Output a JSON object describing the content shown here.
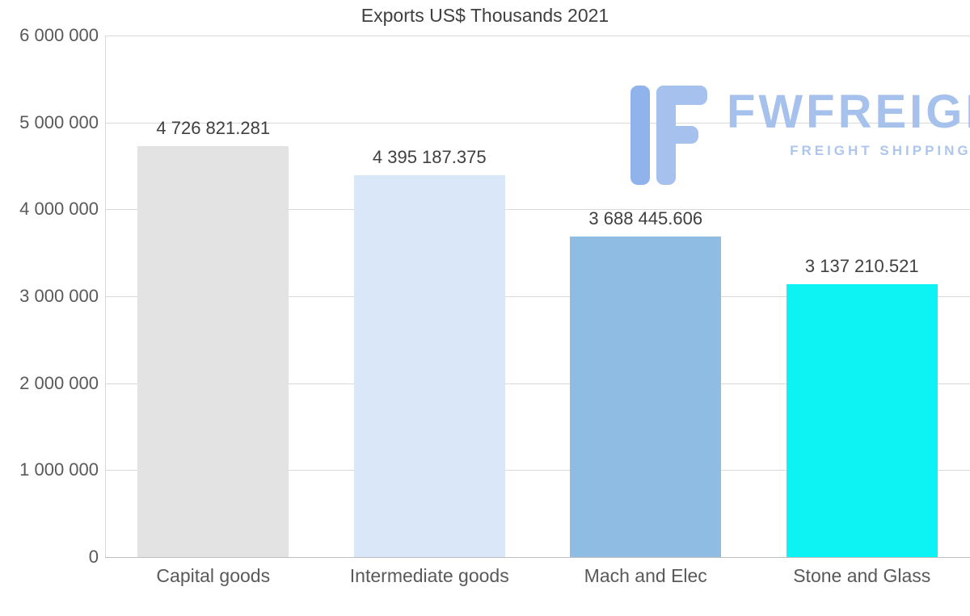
{
  "chart_data": {
    "type": "bar",
    "title": "Exports US$ Thousands 2021",
    "categories": [
      "Capital goods",
      "Intermediate goods",
      "Mach and Elec",
      "Stone and Glass"
    ],
    "values": [
      4726821.281,
      4395187.375,
      3688445.606,
      3137210.521
    ],
    "value_labels": [
      "4 726 821.281",
      "4 395 187.375",
      "3 688 445.606",
      "3 137 210.521"
    ],
    "bar_colors": [
      "#e3e3e3",
      "#d9e7f8",
      "#8fbce2",
      "#0df2f2"
    ],
    "xlabel": "",
    "ylabel": "",
    "ylim": [
      0,
      6000000
    ],
    "y_ticks": [
      0,
      1000000,
      2000000,
      3000000,
      4000000,
      5000000,
      6000000
    ],
    "y_tick_labels": [
      "0",
      "1 000 000",
      "2 000 000",
      "3 000 000",
      "4 000 000",
      "5 000 000",
      "6 000 000"
    ],
    "grid": true,
    "legend": false
  },
  "watermark": {
    "brand": "FWFREIGHT",
    "tagline": "FREIGHT SHIPPING",
    "brand_color": "#a6c1ec",
    "tagline_color": "#aec6ee",
    "logo_colors": [
      "#8fb3ea",
      "#a6c1ee"
    ]
  },
  "colors": {
    "title_text": "#404040",
    "axis_text": "#595959",
    "gridline": "#d9d9d9",
    "value_label_text": "#404040",
    "background": "#ffffff"
  }
}
